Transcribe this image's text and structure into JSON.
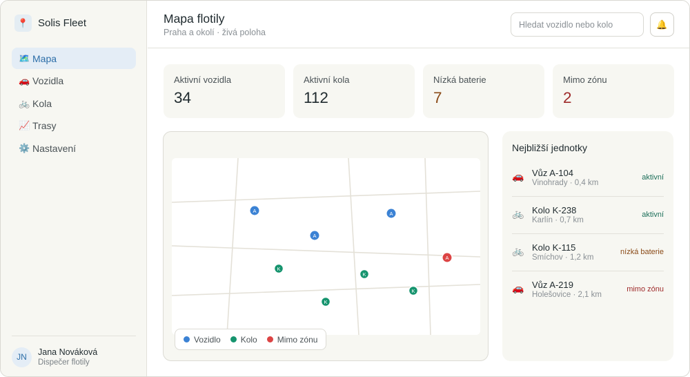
{
  "sidebar": {
    "brand": {
      "icon": "pin-icon",
      "glyph": "📍",
      "name": "Solis Fleet"
    },
    "nav": [
      {
        "id": "mapa",
        "glyph": "🗺️",
        "label": "Mapa",
        "active": true
      },
      {
        "id": "vozidla",
        "glyph": "🚗",
        "label": "Vozidla",
        "active": false
      },
      {
        "id": "kola",
        "glyph": "🚲",
        "label": "Kola",
        "active": false
      },
      {
        "id": "trasy",
        "glyph": "📈",
        "label": "Trasy",
        "active": false
      },
      {
        "id": "nastaveni",
        "glyph": "⚙️",
        "label": "Nastavení",
        "active": false
      }
    ],
    "user": {
      "initials": "JN",
      "name": "Jana Nováková",
      "role": "Dispečer flotily"
    }
  },
  "header": {
    "title": "Mapa flotily",
    "subtitle": "Praha a okolí · živá poloha",
    "search_placeholder": "Hledat vozidlo nebo kolo",
    "bell_glyph": "🔔"
  },
  "stats": [
    {
      "id": "active-vehicles",
      "label": "Aktivní vozidla",
      "value": "34",
      "tone": ""
    },
    {
      "id": "active-bikes",
      "label": "Aktivní kola",
      "value": "112",
      "tone": ""
    },
    {
      "id": "low-battery",
      "label": "Nízká baterie",
      "value": "7",
      "tone": "warn"
    },
    {
      "id": "out-of-zone",
      "label": "Mimo zónu",
      "value": "2",
      "tone": "danger"
    }
  ],
  "map": {
    "marker_colors": {
      "vehicle": "#3b82d4",
      "bike": "#16946e",
      "out": "#dc4444"
    },
    "markers": [
      {
        "type": "vehicle",
        "letter": "A"
      },
      {
        "type": "vehicle",
        "letter": "A"
      },
      {
        "type": "vehicle",
        "letter": "A"
      },
      {
        "type": "out",
        "letter": "A"
      },
      {
        "type": "bike",
        "letter": "K"
      },
      {
        "type": "bike",
        "letter": "K"
      },
      {
        "type": "bike",
        "letter": "K"
      },
      {
        "type": "bike",
        "letter": "K"
      }
    ],
    "legend": [
      {
        "id": "vehicle",
        "label": "Vozidlo",
        "color": "#3b82d4"
      },
      {
        "id": "bike",
        "label": "Kolo",
        "color": "#16946e"
      },
      {
        "id": "out",
        "label": "Mimo zónu",
        "color": "#dc4444"
      }
    ]
  },
  "nearest": {
    "title": "Nejbližší jednotky",
    "units": [
      {
        "glyph": "🚗",
        "icon": "car-icon",
        "name": "Vůz A-104",
        "meta": "Vinohrady · 0,4 km",
        "status": "aktivní",
        "status_type": "active"
      },
      {
        "glyph": "🚲",
        "icon": "bike-icon",
        "name": "Kolo K-238",
        "meta": "Karlín · 0,7 km",
        "status": "aktivní",
        "status_type": "active"
      },
      {
        "glyph": "🚲",
        "icon": "bike-icon",
        "name": "Kolo K-115",
        "meta": "Smíchov · 1,2 km",
        "status": "nízká baterie",
        "status_type": "low"
      },
      {
        "glyph": "🚗",
        "icon": "car-icon",
        "name": "Vůz A-219",
        "meta": "Holešovice · 2,1 km",
        "status": "mimo zónu",
        "status_type": "out"
      }
    ]
  }
}
